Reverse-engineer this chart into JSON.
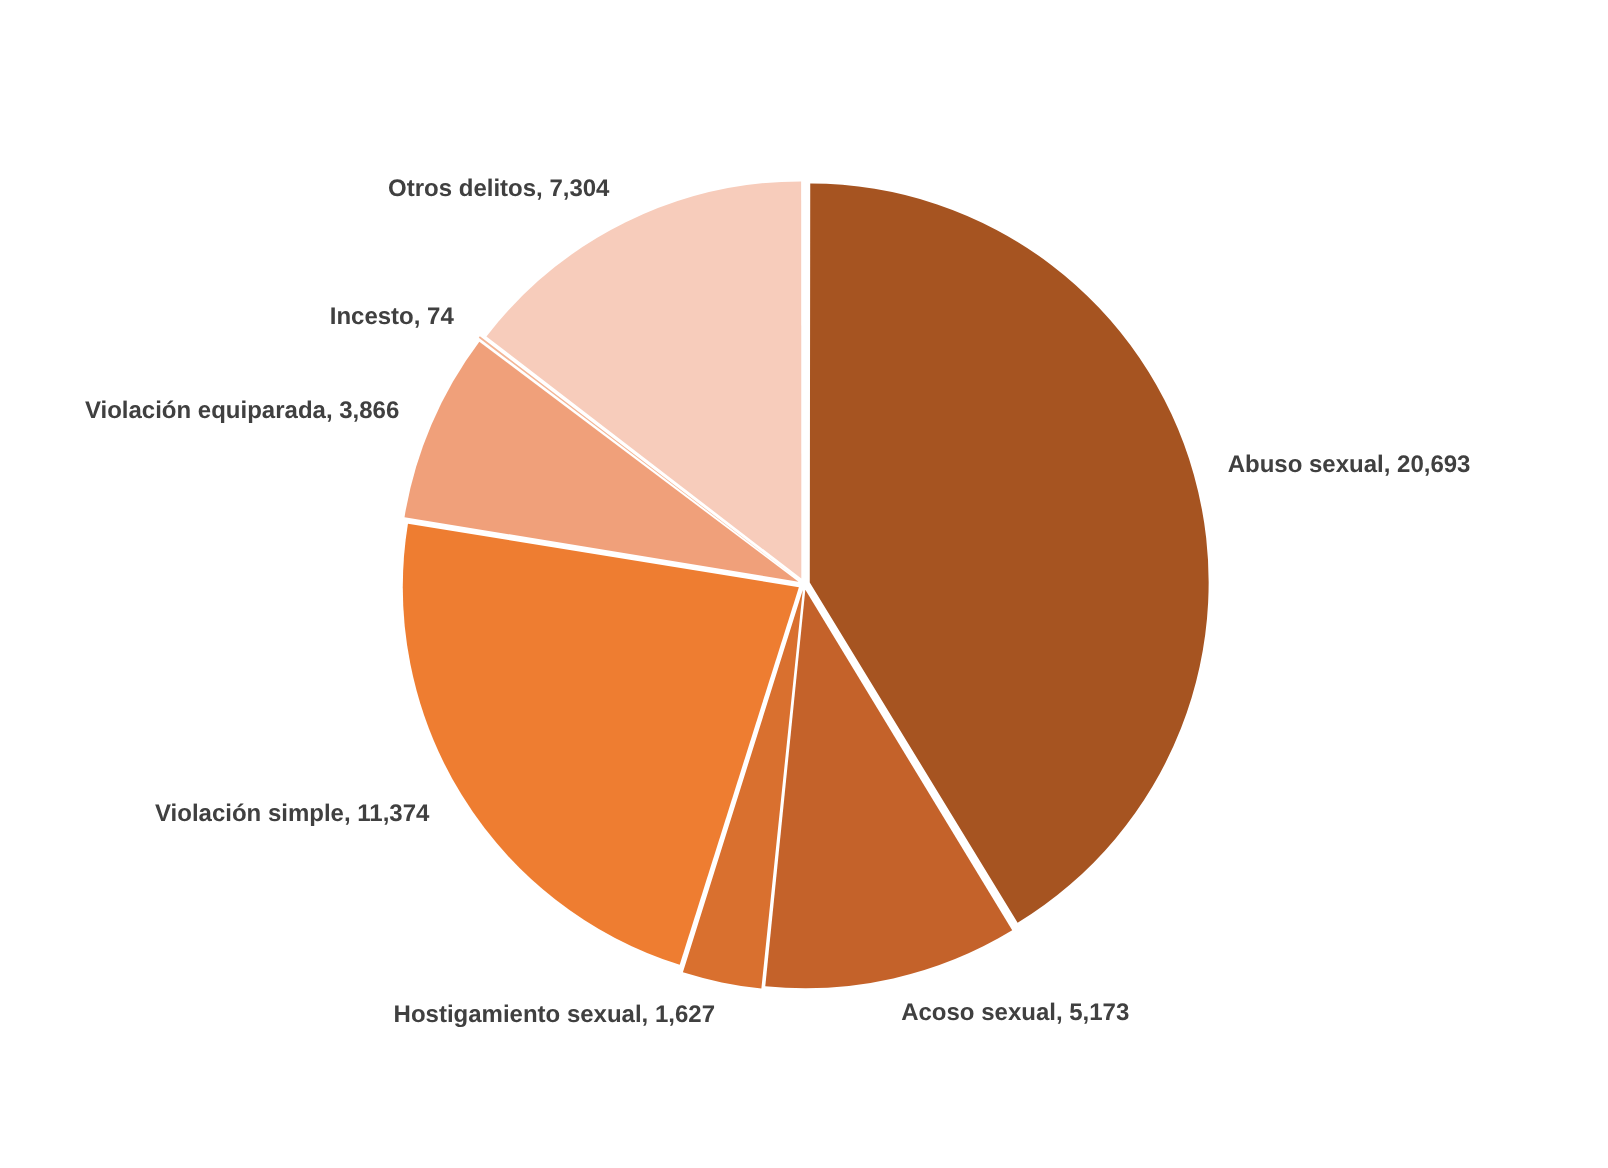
{
  "chart_data": {
    "type": "pie",
    "categories": [
      "Abuso sexual",
      "Acoso sexual",
      "Hostigamiento sexual",
      "Violación simple",
      "Violación equiparada",
      "Incesto",
      "Otros delitos"
    ],
    "values": [
      20693,
      5173,
      1627,
      11374,
      3866,
      74,
      7304
    ],
    "value_labels": [
      "20,693",
      "5,173",
      "1,627",
      "11,374",
      "3,866",
      "74",
      "7,304"
    ],
    "colors": [
      "#a65421",
      "#c4622a",
      "#d9702f",
      "#ee7d31",
      "#f0a07a",
      "#f3b595",
      "#f7ccbb"
    ],
    "legend": false
  }
}
